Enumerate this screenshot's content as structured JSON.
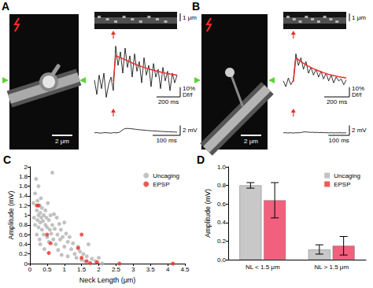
{
  "chart_data": [
    {
      "type": "line",
      "tick_labels": false,
      "x": [
        0,
        20,
        40,
        60,
        80,
        100,
        120,
        140,
        160,
        180,
        200,
        220,
        240,
        260,
        280,
        300,
        320,
        340,
        360,
        380,
        400,
        420,
        440,
        460,
        480,
        500,
        520,
        540,
        560,
        580,
        600,
        620,
        640,
        660,
        680,
        700
      ],
      "xlim": [
        0,
        700
      ],
      "ylim": [
        -25,
        45
      ],
      "series": [
        {
          "color": "#000000",
          "values": [
            3,
            -12,
            8,
            -6,
            10,
            -15,
            -2,
            6,
            -8,
            38,
            18,
            32,
            10,
            36,
            16,
            28,
            6,
            30,
            12,
            22,
            0,
            26,
            8,
            18,
            -4,
            20,
            6,
            14,
            -6,
            16,
            2,
            12,
            -8,
            10,
            0,
            8
          ]
        },
        {
          "color": "#e8302a",
          "values": [
            null,
            null,
            null,
            null,
            null,
            null,
            null,
            null,
            2,
            28,
            27,
            26,
            25,
            24,
            22.8,
            21.7,
            20.6,
            19.6,
            18.6,
            17.7,
            16.8,
            16,
            15.2,
            14.4,
            13.7,
            13,
            12.4,
            11.8,
            11.2,
            10.6,
            10.1,
            9.6,
            9.1,
            8.7,
            8.3,
            7.9
          ]
        }
      ],
      "scale_bars": [
        {
          "axis": "y",
          "value": 10,
          "label": "10% Df/f"
        },
        {
          "axis": "x",
          "value": 200,
          "label": "200 ms"
        }
      ]
    },
    {
      "type": "line",
      "tick_labels": false,
      "x": [
        0,
        10,
        20,
        30,
        40,
        50,
        60,
        70,
        80,
        90,
        100,
        110,
        120,
        130,
        140,
        150,
        160,
        170,
        180,
        190,
        200,
        210,
        220,
        230,
        240,
        250,
        260,
        270,
        280,
        290,
        300
      ],
      "xlim": [
        0,
        300
      ],
      "ylim": [
        -0.5,
        3
      ],
      "series": [
        {
          "color": "#000000",
          "values": [
            0,
            0.05,
            -0.05,
            0,
            0.05,
            0,
            -0.05,
            0.05,
            0,
            0.1,
            0.5,
            0.85,
            0.9,
            0.85,
            0.8,
            0.72,
            0.65,
            0.6,
            0.55,
            0.5,
            0.45,
            0.42,
            0.38,
            0.35,
            0.3,
            0.28,
            0.25,
            0.22,
            0.2,
            0.18,
            0.15
          ]
        }
      ],
      "scale_bars": [
        {
          "axis": "y",
          "value": 2,
          "label": "2 mV"
        },
        {
          "axis": "x",
          "value": 100,
          "label": "100 ms"
        }
      ]
    },
    {
      "type": "line",
      "tick_labels": false,
      "x": [
        0,
        20,
        40,
        60,
        80,
        100,
        120,
        140,
        160,
        180,
        200,
        220,
        240,
        260,
        280,
        300,
        320,
        340,
        360,
        380,
        400,
        420,
        440,
        460,
        480,
        500
      ],
      "xlim": [
        0,
        500
      ],
      "ylim": [
        -25,
        45
      ],
      "series": [
        {
          "color": "#000000",
          "values": [
            2,
            -4,
            5,
            -2,
            3,
            30,
            18,
            26,
            14,
            22,
            10,
            16,
            8,
            14,
            6,
            12,
            4,
            10,
            2,
            8,
            0,
            6,
            2,
            4,
            -2,
            3
          ]
        },
        {
          "color": "#e8302a",
          "values": [
            null,
            null,
            null,
            null,
            1,
            26,
            24,
            22,
            20.3,
            18.7,
            17.2,
            15.8,
            14.6,
            13.4,
            12.4,
            11.4,
            10.5,
            9.7,
            8.9,
            8.2,
            7.6,
            7,
            6.4,
            5.9,
            5.5,
            5
          ]
        }
      ],
      "scale_bars": [
        {
          "axis": "y",
          "value": 10,
          "label": "10% Df/f"
        },
        {
          "axis": "x",
          "value": 200,
          "label": "200 ms"
        }
      ]
    },
    {
      "type": "line",
      "tick_labels": false,
      "x": [
        0,
        10,
        20,
        30,
        40,
        50,
        60,
        70,
        80,
        90,
        100,
        110,
        120,
        130,
        140,
        150,
        160,
        170,
        180,
        190,
        200,
        210,
        220,
        230,
        240,
        250,
        260,
        270,
        280,
        290,
        300
      ],
      "xlim": [
        0,
        300
      ],
      "ylim": [
        -0.5,
        3
      ],
      "series": [
        {
          "color": "#000000",
          "values": [
            0,
            0.04,
            -0.03,
            0.02,
            0,
            -0.04,
            0.03,
            0,
            0.05,
            0.12,
            0.2,
            0.18,
            0.15,
            0.1,
            0.12,
            0.08,
            0.1,
            0.05,
            0.07,
            0.03,
            0.05,
            0.02,
            0,
            0.04,
            -0.02,
            0.02,
            0,
            0.03,
            -0.02,
            0.01,
            0
          ]
        }
      ],
      "scale_bars": [
        {
          "axis": "y",
          "value": 2,
          "label": "2 mV"
        },
        {
          "axis": "x",
          "value": 100,
          "label": "100 ms"
        }
      ]
    },
    {
      "type": "scatter",
      "title": "C",
      "xlabel": "Neck Length (μm)",
      "ylabel": "Amplitude (mV)",
      "xlim": [
        0,
        4.5
      ],
      "xticks": [
        0,
        0.5,
        1,
        1.5,
        2,
        2.5,
        3,
        3.5,
        4,
        4.5
      ],
      "ylim": [
        0,
        2
      ],
      "yticks": [
        0,
        0.2,
        0.4,
        0.6,
        0.8,
        1,
        1.2,
        1.4,
        1.6,
        1.8,
        2
      ],
      "grid": false,
      "legend": "upper right",
      "series": [
        {
          "name": "Uncaging",
          "color": "#b3b3b3",
          "marker": "circle",
          "x": [
            0.1,
            0.12,
            0.15,
            0.15,
            0.18,
            0.2,
            0.2,
            0.22,
            0.22,
            0.25,
            0.25,
            0.25,
            0.28,
            0.28,
            0.3,
            0.3,
            0.3,
            0.32,
            0.33,
            0.35,
            0.35,
            0.38,
            0.4,
            0.4,
            0.42,
            0.45,
            0.45,
            0.48,
            0.5,
            0.5,
            0.52,
            0.55,
            0.55,
            0.58,
            0.6,
            0.62,
            0.65,
            0.65,
            0.68,
            0.7,
            0.72,
            0.75,
            0.78,
            0.8,
            0.82,
            0.85,
            0.88,
            0.9,
            0.92,
            0.95,
            1.0,
            1.0,
            1.05,
            1.1,
            1.1,
            1.15,
            1.2,
            1.25,
            1.3,
            1.35,
            1.4,
            1.45,
            1.5,
            1.55,
            1.6,
            1.65,
            1.7,
            1.8,
            1.9,
            2.0,
            2.1
          ],
          "values": [
            1.25,
            0.95,
            1.45,
            0.8,
            1.75,
            1.1,
            0.6,
            1.3,
            0.9,
            1.6,
            1.0,
            0.75,
            1.2,
            0.5,
            1.05,
            0.85,
            0.4,
            1.35,
            0.95,
            0.7,
            1.15,
            0.88,
            1.0,
            0.6,
            0.3,
            0.8,
            1.1,
            0.95,
            0.55,
            0.75,
            1.25,
            0.9,
            0.45,
            0.7,
            1.0,
            0.62,
            1.88,
            0.8,
            0.5,
            1.02,
            0.72,
            0.4,
            0.95,
            0.6,
            0.28,
            0.82,
            0.5,
            0.7,
            0.18,
            0.55,
            0.85,
            0.35,
            0.62,
            0.45,
            0.15,
            0.55,
            0.3,
            0.42,
            0.2,
            0.12,
            0.35,
            0.25,
            0.08,
            0.2,
            0.05,
            0.15,
            0.4,
            0.1,
            0.05,
            0.12,
            0.0
          ]
        },
        {
          "name": "EPSP",
          "color": "#e8302a",
          "marker": "circle",
          "x": [
            0.2,
            0.25,
            0.5,
            0.55,
            0.6,
            1.4,
            1.5,
            1.5,
            1.65,
            1.75,
            1.95,
            2.6,
            4.15
          ],
          "values": [
            1.2,
            1.2,
            0.6,
            0.22,
            0.42,
            0.32,
            0.6,
            0.12,
            0.05,
            0.01,
            0.03,
            0.0,
            0.0
          ]
        }
      ]
    },
    {
      "type": "bar",
      "title": "D",
      "ylabel": "Amplitude (mV)",
      "categories": [
        "NL < 1.5 μm",
        "NL > 1.5 μm"
      ],
      "ylim": [
        0,
        1
      ],
      "yticks": [
        {
          "value": 0,
          "label": "0.0"
        },
        {
          "value": 0.2,
          "label": "0.2"
        },
        {
          "value": 0.4,
          "label": "0.4"
        },
        {
          "value": 0.6,
          "label": "0.6"
        },
        {
          "value": 0.8,
          "label": "0.8"
        },
        {
          "value": 1,
          "label": "1.0"
        }
      ],
      "grid": false,
      "legend": "upper right",
      "series": [
        {
          "name": "Uncaging",
          "color": "#c8c8c8",
          "values": [
            0.8,
            0.11
          ],
          "errors": [
            0.03,
            0.05
          ]
        },
        {
          "name": "EPSP",
          "color": "#f2607e",
          "values": [
            0.64,
            0.15
          ],
          "errors": [
            0.19,
            0.1
          ]
        }
      ]
    }
  ],
  "image_panels": [
    {
      "label": "A",
      "scale_bar": "2 μm",
      "line_scan_scale_bar": "1 μm"
    },
    {
      "label": "B",
      "scale_bar": "2 μm",
      "line_scan_scale_bar": "1 μm"
    }
  ]
}
